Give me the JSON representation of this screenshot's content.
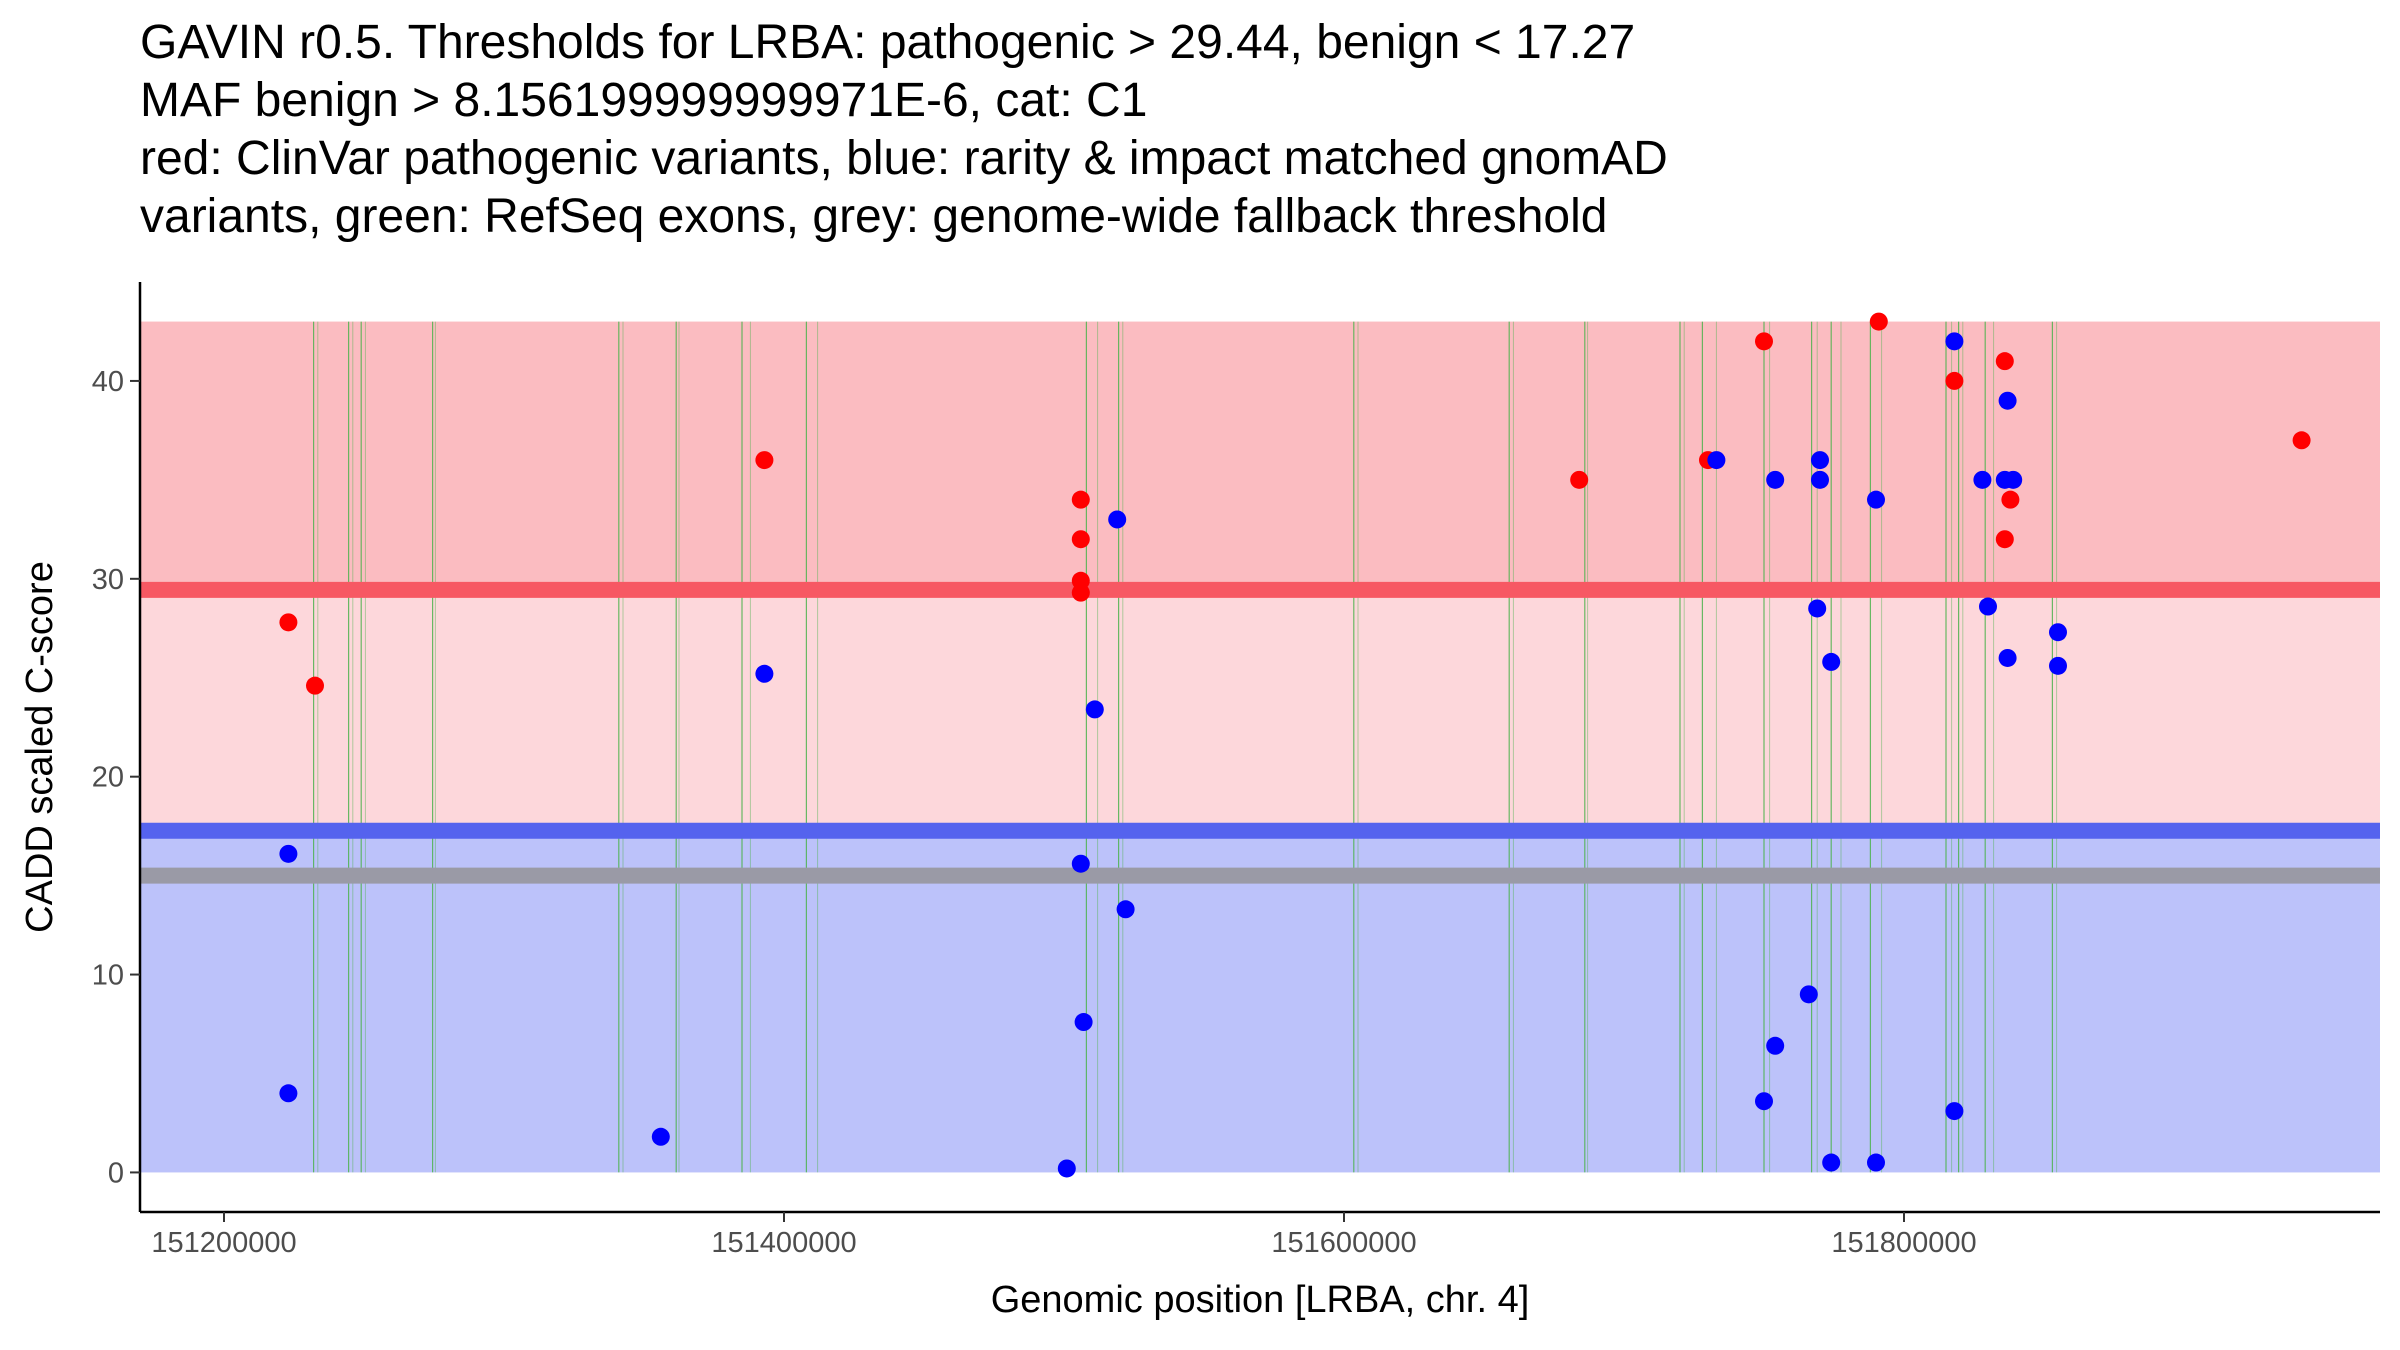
{
  "chart_data": {
    "type": "scatter",
    "title_lines": [
      "GAVIN r0.5. Thresholds for LRBA: pathogenic > 29.44, benign < 17.27",
      "MAF benign > 8.156199999999971E-6, cat: C1",
      "red: ClinVar pathogenic variants, blue: rarity & impact matched gnomAD",
      "variants, green: RefSeq exons, grey: genome-wide fallback threshold"
    ],
    "xlabel": "Genomic position [LRBA, chr. 4]",
    "ylabel": "CADD scaled C-score",
    "xlim": [
      151170000,
      151970000
    ],
    "ylim": [
      -2,
      45
    ],
    "x_ticks": [
      151200000,
      151400000,
      151600000,
      151800000
    ],
    "x_tick_labels": [
      "151200000",
      "151400000",
      "151600000",
      "151800000"
    ],
    "y_ticks": [
      0,
      10,
      20,
      30,
      40
    ],
    "y_tick_labels": [
      "0",
      "10",
      "20",
      "30",
      "40"
    ],
    "thresholds": {
      "pathogenic": 29.44,
      "benign": 17.27,
      "fallback": 15.0,
      "band_top": 43,
      "band_bottom": 0
    },
    "colors": {
      "pathogenic_point": "#ff0000",
      "benign_point": "#0000ff",
      "pathogenic_band_upper": "#fbbcc1",
      "pathogenic_band_lower": "#fdd7db",
      "benign_band": "#bcc2fa",
      "pathogenic_line": "#f75863",
      "benign_line": "#5563ee",
      "fallback_line": "#9a9aa6",
      "exon": "#4db34d"
    },
    "exons": [
      [
        151232000,
        151233500
      ],
      [
        151244500,
        151246000
      ],
      [
        151249000,
        151250500
      ],
      [
        151274500,
        151275500
      ],
      [
        151341000,
        151342500
      ],
      [
        151361500,
        151362500
      ],
      [
        151385000,
        151388000
      ],
      [
        151408000,
        151412000
      ],
      [
        151508000,
        151512000
      ],
      [
        151519500,
        151521000
      ],
      [
        151603500,
        151605000
      ],
      [
        151659000,
        151660500
      ],
      [
        151686000,
        151687000
      ],
      [
        151720000,
        151721500
      ],
      [
        151728000,
        151733000
      ],
      [
        151750000,
        151752000
      ],
      [
        151767000,
        151769000
      ],
      [
        151774000,
        151777500
      ],
      [
        151788000,
        151792000
      ],
      [
        151815000,
        151817000
      ],
      [
        151819500,
        151821000
      ],
      [
        151829000,
        151832000
      ],
      [
        151853000,
        151854500
      ]
    ],
    "series": [
      {
        "name": "ClinVar pathogenic variants",
        "color": "#ff0000",
        "points": [
          [
            151223000,
            27.8
          ],
          [
            151232500,
            24.6
          ],
          [
            151393000,
            36.0
          ],
          [
            151506000,
            34.0
          ],
          [
            151506000,
            32.0
          ],
          [
            151506000,
            29.9
          ],
          [
            151506000,
            29.3
          ],
          [
            151684000,
            35.0
          ],
          [
            151730000,
            36.0
          ],
          [
            151750000,
            42.0
          ],
          [
            151791000,
            43.0
          ],
          [
            151818000,
            40.0
          ],
          [
            151836000,
            41.0
          ],
          [
            151836000,
            32.0
          ],
          [
            151838000,
            34.0
          ],
          [
            151942000,
            37.0
          ]
        ]
      },
      {
        "name": "rarity & impact matched gnomAD variants",
        "color": "#0000ff",
        "points": [
          [
            151223000,
            16.1
          ],
          [
            151223000,
            4.0
          ],
          [
            151356000,
            1.8
          ],
          [
            151393000,
            25.2
          ],
          [
            151501000,
            0.2
          ],
          [
            151506000,
            15.6
          ],
          [
            151507000,
            7.6
          ],
          [
            151511000,
            23.4
          ],
          [
            151519000,
            33.0
          ],
          [
            151522000,
            13.3
          ],
          [
            151733000,
            36.0
          ],
          [
            151750000,
            3.6
          ],
          [
            151754000,
            6.4
          ],
          [
            151754000,
            35.0
          ],
          [
            151766000,
            9.0
          ],
          [
            151769000,
            28.5
          ],
          [
            151770000,
            35.0
          ],
          [
            151770000,
            36.0
          ],
          [
            151774000,
            25.8
          ],
          [
            151774000,
            0.5
          ],
          [
            151790000,
            34.0
          ],
          [
            151790000,
            0.5
          ],
          [
            151818000,
            42.0
          ],
          [
            151818000,
            3.1
          ],
          [
            151828000,
            35.0
          ],
          [
            151830000,
            28.6
          ],
          [
            151836000,
            35.0
          ],
          [
            151837000,
            39.0
          ],
          [
            151837000,
            26.0
          ],
          [
            151839000,
            35.0
          ],
          [
            151855000,
            27.3
          ],
          [
            151855000,
            25.6
          ]
        ]
      }
    ]
  }
}
